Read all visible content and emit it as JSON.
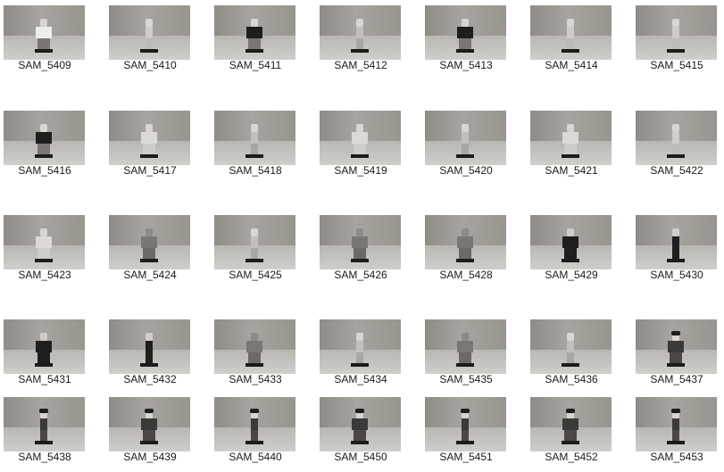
{
  "files": [
    {
      "name": "SAM_5409",
      "figure": "white-torso"
    },
    {
      "name": "SAM_5410",
      "figure": "light-slim"
    },
    {
      "name": "SAM_5411",
      "figure": "dark-torso"
    },
    {
      "name": "SAM_5412",
      "figure": "side-profile"
    },
    {
      "name": "SAM_5413",
      "figure": "dark-torso"
    },
    {
      "name": "SAM_5414",
      "figure": "light-slim"
    },
    {
      "name": "SAM_5415",
      "figure": "light-slim"
    },
    {
      "name": "SAM_5416",
      "figure": "dark-torso"
    },
    {
      "name": "SAM_5417",
      "figure": "light-full"
    },
    {
      "name": "SAM_5418",
      "figure": "side-profile"
    },
    {
      "name": "SAM_5419",
      "figure": "light-full"
    },
    {
      "name": "SAM_5420",
      "figure": "side-profile"
    },
    {
      "name": "SAM_5421",
      "figure": "light-full"
    },
    {
      "name": "SAM_5422",
      "figure": "light-slim"
    },
    {
      "name": "SAM_5423",
      "figure": "light-full"
    },
    {
      "name": "SAM_5424",
      "figure": "grey-full"
    },
    {
      "name": "SAM_5425",
      "figure": "side-profile"
    },
    {
      "name": "SAM_5426",
      "figure": "grey-full"
    },
    {
      "name": "SAM_5428",
      "figure": "grey-full"
    },
    {
      "name": "SAM_5429",
      "figure": "black-suit"
    },
    {
      "name": "SAM_5430",
      "figure": "black-side"
    },
    {
      "name": "SAM_5431",
      "figure": "black-suit"
    },
    {
      "name": "SAM_5432",
      "figure": "black-side"
    },
    {
      "name": "SAM_5433",
      "figure": "grey-full"
    },
    {
      "name": "SAM_5434",
      "figure": "side-profile"
    },
    {
      "name": "SAM_5435",
      "figure": "grey-full"
    },
    {
      "name": "SAM_5436",
      "figure": "side-profile"
    },
    {
      "name": "SAM_5437",
      "figure": "dark-hair"
    },
    {
      "name": "SAM_5438",
      "figure": "dark-hair-side"
    },
    {
      "name": "SAM_5439",
      "figure": "dark-hair"
    },
    {
      "name": "SAM_5440",
      "figure": "dark-hair-side"
    },
    {
      "name": "SAM_5450",
      "figure": "dark-hair"
    },
    {
      "name": "SAM_5451",
      "figure": "dark-hair-side"
    },
    {
      "name": "SAM_5452",
      "figure": "dark-hair"
    },
    {
      "name": "SAM_5453",
      "figure": "dark-hair-side"
    }
  ],
  "colors": {
    "base_plate": "#1c1c1c",
    "figure_light": "#d8d6d2",
    "figure_grey": "#7a7773",
    "figure_dark": "#1e1e1e"
  }
}
